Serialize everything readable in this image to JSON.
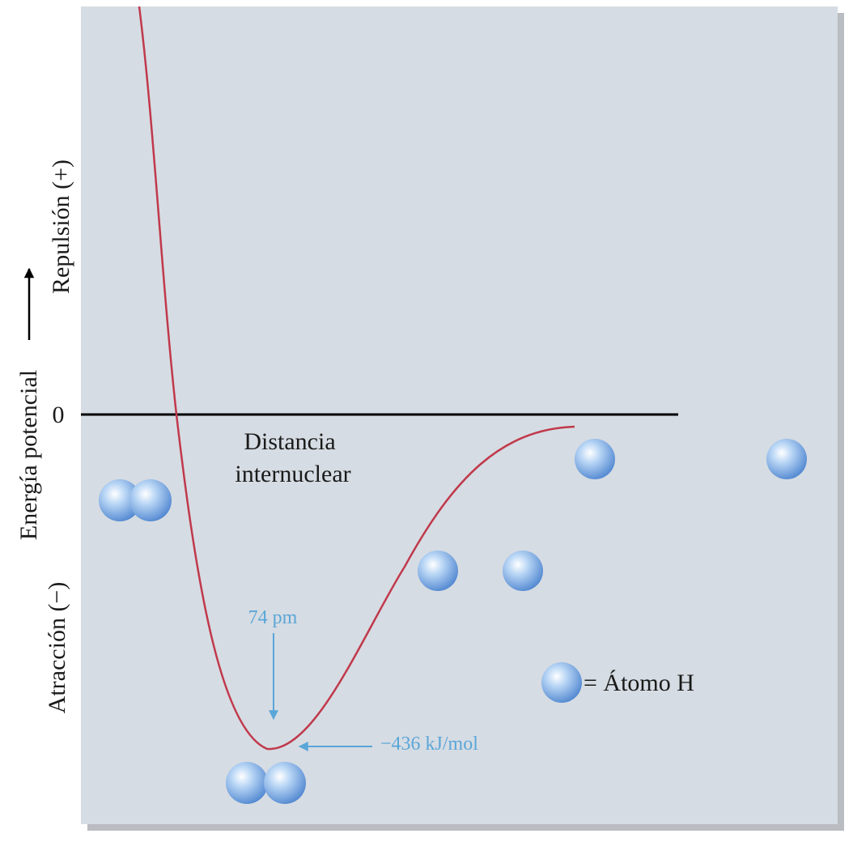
{
  "axis": {
    "repulsion": "Repulsión (+)",
    "label": "Energía potencial",
    "attraction": "Atracción (−)",
    "zero": "0"
  },
  "x_label": [
    "Distancia",
    "internuclear"
  ],
  "bond_length": "74 pm",
  "bond_energy": "−436 kJ/mol",
  "legend": "= Átomo H"
}
